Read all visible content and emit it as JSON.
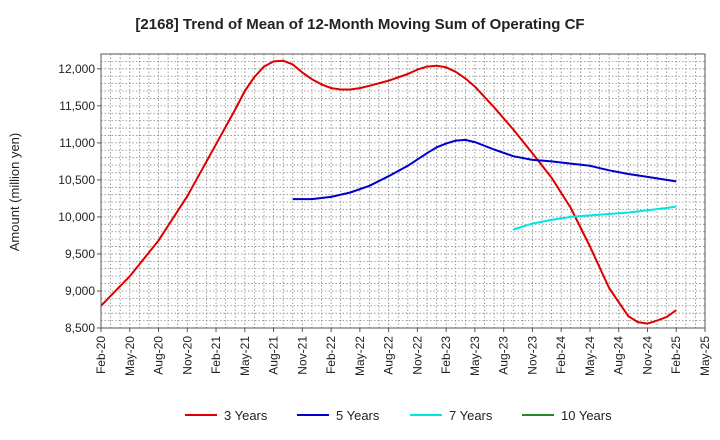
{
  "chart_data": {
    "type": "line",
    "title": "[2168]  Trend of Mean of 12-Month Moving Sum of Operating CF",
    "xlabel": "",
    "ylabel": "Amount (million yen)",
    "ylim": [
      8500,
      12200
    ],
    "yticks": [
      8500,
      9000,
      9500,
      10000,
      10500,
      11000,
      11500,
      12000
    ],
    "ytick_labels": [
      "8,500",
      "9,000",
      "9,500",
      "10,000",
      "10,500",
      "11,000",
      "11,500",
      "12,000"
    ],
    "xtick_labels": [
      "Feb-20",
      "May-20",
      "Aug-20",
      "Nov-20",
      "Feb-21",
      "May-21",
      "Aug-21",
      "Nov-21",
      "Feb-22",
      "May-22",
      "Aug-22",
      "Nov-22",
      "Feb-23",
      "May-23",
      "Aug-23",
      "Nov-23",
      "Feb-24",
      "May-24",
      "Aug-24",
      "Nov-24",
      "Feb-25",
      "May-25"
    ],
    "x_range_months": [
      0,
      63
    ],
    "grid": true,
    "legend_position": "bottom",
    "series": [
      {
        "name": "3 Years",
        "color": "#dd0000",
        "x": [
          0,
          3,
          6,
          9,
          12,
          14,
          15,
          16,
          17,
          18,
          19,
          20,
          21,
          22,
          23,
          24,
          25,
          26,
          27,
          28,
          30,
          32,
          33,
          34,
          35,
          36,
          37,
          38,
          39,
          41,
          43,
          45,
          47,
          49,
          51,
          53,
          55,
          56,
          57,
          58,
          59,
          60
        ],
        "values": [
          8800,
          9200,
          9680,
          10280,
          10980,
          11450,
          11700,
          11890,
          12030,
          12100,
          12110,
          12060,
          11950,
          11860,
          11790,
          11740,
          11720,
          11720,
          11740,
          11770,
          11840,
          11930,
          11990,
          12030,
          12040,
          12020,
          11960,
          11870,
          11760,
          11480,
          11180,
          10860,
          10530,
          10120,
          9600,
          9040,
          8660,
          8580,
          8560,
          8600,
          8650,
          8740
        ]
      },
      {
        "name": "5 Years",
        "color": "#0000cc",
        "x": [
          20,
          21,
          22,
          24,
          26,
          28,
          30,
          32,
          34,
          35,
          36,
          37,
          38,
          39,
          41,
          43,
          45,
          47,
          49,
          51,
          53,
          55,
          57,
          59,
          60
        ],
        "values": [
          10240,
          10240,
          10240,
          10270,
          10330,
          10420,
          10550,
          10690,
          10860,
          10940,
          10990,
          11030,
          11040,
          11010,
          10910,
          10820,
          10770,
          10750,
          10720,
          10690,
          10630,
          10580,
          10540,
          10500,
          10480
        ]
      },
      {
        "name": "7 Years",
        "color": "#00e5e5",
        "x": [
          43,
          45,
          47,
          49,
          51,
          53,
          55,
          57,
          59,
          60
        ],
        "values": [
          9830,
          9910,
          9960,
          10000,
          10020,
          10040,
          10060,
          10090,
          10120,
          10140
        ]
      },
      {
        "name": "10 Years",
        "color": "#228b22",
        "x": [],
        "values": []
      }
    ]
  }
}
